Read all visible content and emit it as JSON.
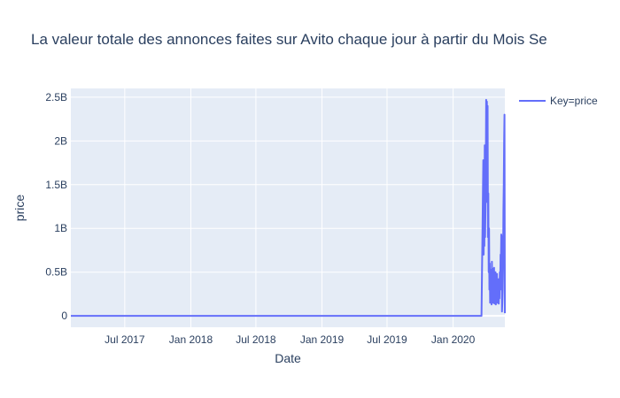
{
  "chart_data": {
    "type": "line",
    "title": "La valeur totale des annonces faites sur Avito chaque jour à partir du Mois Se",
    "xlabel": "Date",
    "ylabel": "price",
    "legend": {
      "entries": [
        "Key=price"
      ],
      "placement": "top-right",
      "line_color": "#636efa"
    },
    "x_ticks": [
      "Jul 2017",
      "Jan 2018",
      "Jul 2018",
      "Jan 2019",
      "Jul 2019",
      "Jan 2020"
    ],
    "y_ticks": [
      "0",
      "0.5B",
      "1B",
      "1.5B",
      "2B",
      "2.5B"
    ],
    "xlim": [
      "2017-02-01",
      "2020-05-24"
    ],
    "ylim": [
      -130000000,
      2600000000
    ],
    "grid": true,
    "series": [
      {
        "name": "Key=price",
        "color": "#636efa",
        "x": [
          "2017-02-01",
          "2020-03-20",
          "2020-03-25",
          "2020-03-26",
          "2020-03-27",
          "2020-03-28",
          "2020-03-29",
          "2020-03-30",
          "2020-03-31",
          "2020-04-01",
          "2020-04-02",
          "2020-04-03",
          "2020-04-04",
          "2020-04-05",
          "2020-04-06",
          "2020-04-07",
          "2020-04-08",
          "2020-04-09",
          "2020-04-10",
          "2020-04-11",
          "2020-04-12",
          "2020-04-13",
          "2020-04-14",
          "2020-04-15",
          "2020-04-16",
          "2020-04-17",
          "2020-04-18",
          "2020-04-19",
          "2020-04-20",
          "2020-04-21",
          "2020-04-22",
          "2020-04-23",
          "2020-04-24",
          "2020-04-25",
          "2020-04-26",
          "2020-04-27",
          "2020-04-28",
          "2020-04-29",
          "2020-04-30",
          "2020-05-01",
          "2020-05-02",
          "2020-05-03",
          "2020-05-04",
          "2020-05-05",
          "2020-05-06",
          "2020-05-07",
          "2020-05-08",
          "2020-05-09",
          "2020-05-10",
          "2020-05-11",
          "2020-05-12",
          "2020-05-13",
          "2020-05-14",
          "2020-05-15",
          "2020-05-16",
          "2020-05-17",
          "2020-05-18",
          "2020-05-19",
          "2020-05-20",
          "2020-05-21",
          "2020-05-22",
          "2020-05-23",
          "2020-05-24"
        ],
        "y": [
          0,
          0,
          1780000000,
          700000000,
          1500000000,
          800000000,
          1950000000,
          900000000,
          1200000000,
          1700000000,
          2470000000,
          2000000000,
          2450000000,
          1300000000,
          2400000000,
          900000000,
          1400000000,
          500000000,
          1000000000,
          300000000,
          600000000,
          150000000,
          450000000,
          250000000,
          530000000,
          130000000,
          620000000,
          220000000,
          540000000,
          150000000,
          450000000,
          300000000,
          550000000,
          140000000,
          400000000,
          250000000,
          500000000,
          130000000,
          350000000,
          200000000,
          480000000,
          150000000,
          300000000,
          250000000,
          420000000,
          140000000,
          350000000,
          200000000,
          500000000,
          300000000,
          700000000,
          600000000,
          930000000,
          900000000,
          50000000,
          150000000,
          300000000,
          600000000,
          1200000000,
          1500000000,
          2000000000,
          2300000000,
          30000000
        ]
      }
    ]
  }
}
